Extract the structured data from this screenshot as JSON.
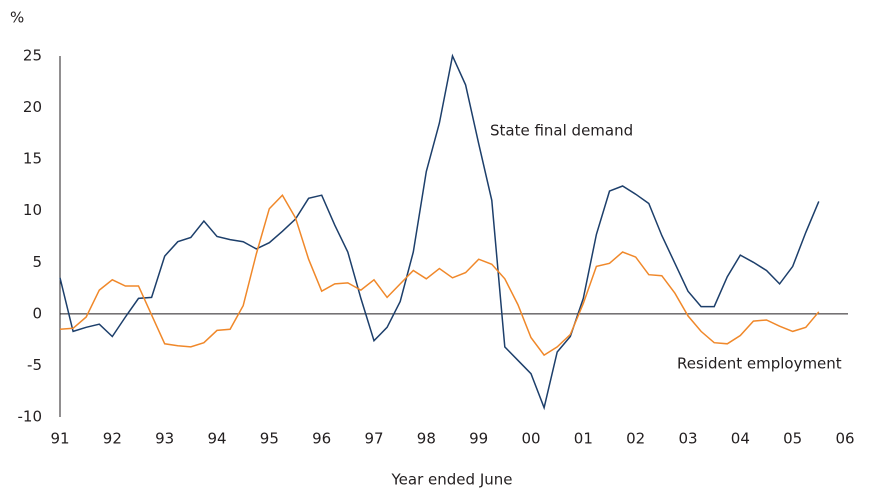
{
  "chart_data": {
    "type": "line",
    "y_unit": "%",
    "xlabel": "Year ended June",
    "xlim": [
      1991,
      2006
    ],
    "xticks": [
      {
        "value": 1991,
        "label": "91"
      },
      {
        "value": 1992,
        "label": "92"
      },
      {
        "value": 1993,
        "label": "93"
      },
      {
        "value": 1994,
        "label": "94"
      },
      {
        "value": 1995,
        "label": "95"
      },
      {
        "value": 1996,
        "label": "96"
      },
      {
        "value": 1997,
        "label": "97"
      },
      {
        "value": 1998,
        "label": "98"
      },
      {
        "value": 1999,
        "label": "99"
      },
      {
        "value": 2000,
        "label": "00"
      },
      {
        "value": 2001,
        "label": "01"
      },
      {
        "value": 2002,
        "label": "02"
      },
      {
        "value": 2003,
        "label": "03"
      },
      {
        "value": 2004,
        "label": "04"
      },
      {
        "value": 2005,
        "label": "05"
      },
      {
        "value": 2006,
        "label": "06"
      }
    ],
    "ylim": [
      -10,
      25
    ],
    "yticks": [
      -10,
      -5,
      0,
      5,
      10,
      15,
      20,
      25
    ],
    "x": [
      1991,
      1991.25,
      1991.5,
      1991.75,
      1992,
      1992.25,
      1992.5,
      1992.75,
      1993,
      1993.25,
      1993.5,
      1993.75,
      1994,
      1994.25,
      1994.5,
      1994.75,
      1995,
      1995.25,
      1995.5,
      1995.75,
      1996,
      1996.25,
      1996.5,
      1996.75,
      1997,
      1997.25,
      1997.5,
      1997.75,
      1998,
      1998.25,
      1998.5,
      1998.75,
      1999,
      1999.25,
      1999.5,
      1999.75,
      2000,
      2000.25,
      2000.5,
      2000.75,
      2001,
      2001.25,
      2001.5,
      2001.75,
      2002,
      2002.25,
      2002.5,
      2002.75,
      2003,
      2003.25,
      2003.5,
      2003.75,
      2004,
      2004.25,
      2004.5,
      2004.75,
      2005,
      2005.25,
      2005.5
    ],
    "series": [
      {
        "name": "State final demand",
        "color": "#1d3f6b",
        "values": [
          3.5,
          -1.7,
          -1.3,
          -1.0,
          -2.2,
          -0.3,
          1.5,
          1.6,
          5.6,
          7.0,
          7.4,
          9.0,
          7.5,
          7.2,
          7.0,
          6.3,
          6.9,
          8.0,
          9.2,
          11.2,
          11.5,
          8.6,
          6.0,
          1.5,
          -2.6,
          -1.3,
          1.2,
          6.0,
          13.8,
          18.5,
          25.0,
          22.2,
          16.5,
          11.0,
          -3.2,
          -4.5,
          -5.8,
          -9.1,
          -3.7,
          -2.2,
          1.5,
          7.7,
          11.9,
          12.4,
          11.6,
          10.7,
          7.6,
          4.9,
          2.2,
          0.7,
          0.7,
          3.6,
          5.7,
          5.0,
          4.2,
          2.9,
          4.6,
          7.9,
          10.9
        ]
      },
      {
        "name": "Resident employment",
        "color": "#f0882a",
        "values": [
          -1.5,
          -1.4,
          -0.3,
          2.3,
          3.3,
          2.7,
          2.7,
          -0.1,
          -2.9,
          -3.1,
          -3.2,
          -2.8,
          -1.6,
          -1.5,
          0.8,
          5.8,
          10.2,
          11.5,
          9.3,
          5.3,
          2.2,
          2.9,
          3.0,
          2.3,
          3.3,
          1.6,
          2.9,
          4.2,
          3.4,
          4.4,
          3.5,
          4.0,
          5.3,
          4.8,
          3.4,
          0.9,
          -2.3,
          -4.0,
          -3.2,
          -2.0,
          1.0,
          4.6,
          4.9,
          6.0,
          5.5,
          3.8,
          3.7,
          2.0,
          -0.2,
          -1.7,
          -2.8,
          -2.9,
          -2.1,
          -0.7,
          -0.6,
          -1.2,
          -1.7,
          -1.3,
          0.2
        ]
      }
    ]
  }
}
